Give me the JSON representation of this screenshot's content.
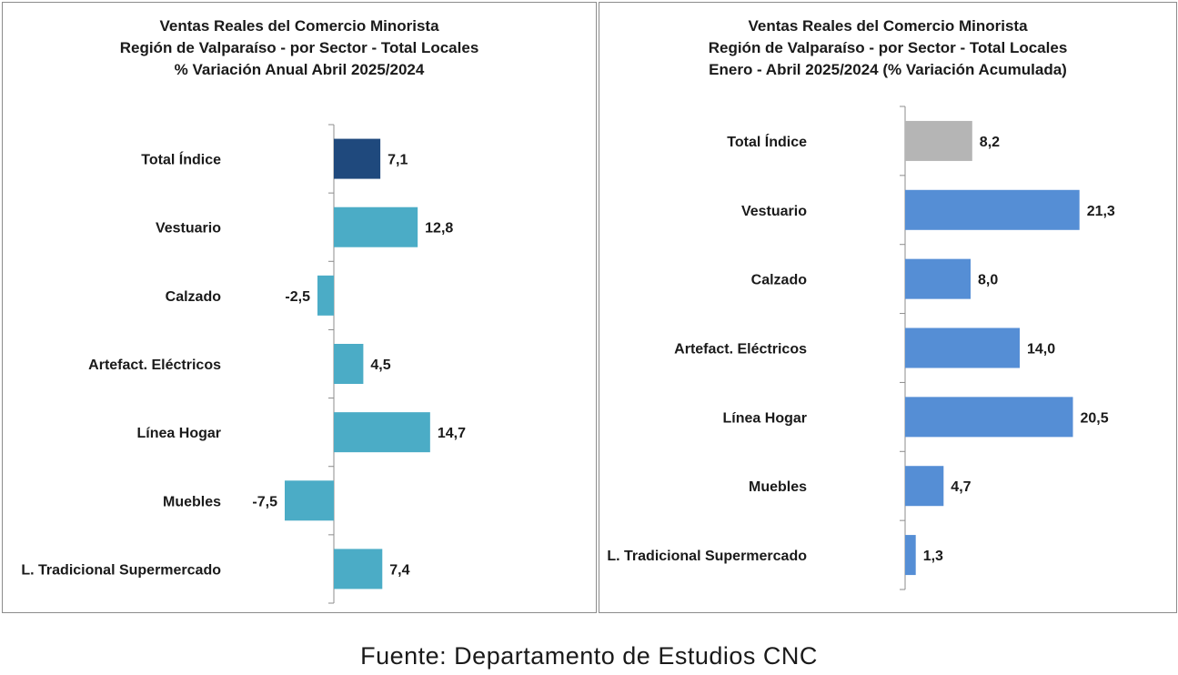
{
  "colors": {
    "total_left": "#1f497d",
    "bars_left": "#4bacc6",
    "total_right": "#b5b5b5",
    "bars_right": "#558ed5"
  },
  "chart_data": [
    {
      "type": "bar",
      "orientation": "horizontal",
      "title": [
        "Ventas Reales del Comercio Minorista",
        "Región de Valparaíso - por Sector - Total Locales",
        "% Variación Anual Abril 2025/2024"
      ],
      "categories": [
        "Total Índice",
        "Vestuario",
        "Calzado",
        "Artefact. Eléctricos",
        "Línea Hogar",
        "Muebles",
        "L. Tradicional Supermercado"
      ],
      "values": [
        7.1,
        12.8,
        -2.5,
        4.5,
        14.7,
        -7.5,
        7.4
      ],
      "value_labels": [
        "7,1",
        "12,8",
        "-2,5",
        "4,5",
        "14,7",
        "-7,5",
        "7,4"
      ],
      "grid": false,
      "legend": "none"
    },
    {
      "type": "bar",
      "orientation": "horizontal",
      "title": [
        "Ventas Reales del Comercio Minorista",
        "Región de Valparaíso - por Sector  - Total Locales",
        "Enero - Abril  2025/2024 (% Variación Acumulada)"
      ],
      "categories": [
        "Total Índice",
        "Vestuario",
        "Calzado",
        "Artefact. Eléctricos",
        "Línea Hogar",
        "Muebles",
        "L. Tradicional Supermercado"
      ],
      "values": [
        8.2,
        21.3,
        8.0,
        14.0,
        20.5,
        4.7,
        1.3
      ],
      "value_labels": [
        "8,2",
        "21,3",
        "8,0",
        "14,0",
        "20,5",
        "4,7",
        "1,3"
      ],
      "grid": false,
      "legend": "none"
    }
  ],
  "source_text": "Fuente:  Departamento  de Estudios  CNC"
}
